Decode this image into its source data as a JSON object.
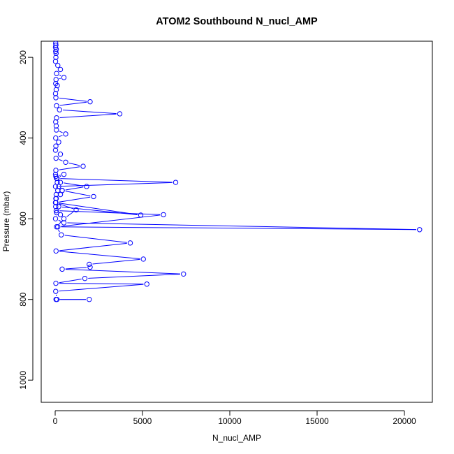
{
  "chart_data": {
    "type": "line",
    "title": "ATOM2 Southbound N_nucl_AMP",
    "xlabel": "N_nucl_AMP",
    "ylabel": "Pressure (mbar)",
    "xlim": [
      -800,
      21600
    ],
    "ylim": [
      1055,
      160
    ],
    "y_reversed": true,
    "xticks": [
      0,
      5000,
      10000,
      15000,
      20000
    ],
    "yticks": [
      200,
      400,
      600,
      800,
      1000
    ],
    "grid": false,
    "legend": "none",
    "marker": "open-circle",
    "color": "#0000ff",
    "series": [
      {
        "x": [
          30,
          40,
          20,
          60,
          30,
          50,
          40,
          20,
          150,
          300,
          80,
          500,
          50,
          30,
          120,
          60,
          20,
          40,
          2000,
          80,
          250,
          3700,
          80,
          30,
          60,
          70,
          600,
          30,
          200,
          40,
          20,
          300,
          50,
          600,
          1600,
          40,
          20,
          100,
          6900,
          20,
          150,
          60,
          40,
          20,
          30,
          80,
          300,
          20,
          500,
          20870,
          150,
          6200,
          60,
          200,
          4900,
          20,
          60,
          300,
          400,
          200,
          120,
          80,
          40,
          500,
          100,
          300,
          1800,
          400,
          2200,
          40,
          1200,
          500,
          80,
          350,
          4300,
          50,
          5050,
          1950,
          2000,
          400,
          7350,
          1700,
          40,
          5250,
          30,
          100,
          1950,
          50
        ],
        "y": [
          165,
          170,
          175,
          180,
          185,
          190,
          200,
          210,
          220,
          230,
          240,
          250,
          255,
          265,
          270,
          280,
          290,
          300,
          310,
          320,
          330,
          340,
          350,
          360,
          370,
          380,
          390,
          400,
          410,
          420,
          430,
          440,
          450,
          460,
          470,
          480,
          490,
          500,
          510,
          520,
          530,
          540,
          550,
          560,
          570,
          585,
          590,
          600,
          610,
          627,
          620,
          590,
          580,
          570,
          591,
          560,
          550,
          540,
          530,
          520,
          510,
          500,
          495,
          490,
          500,
          510,
          520,
          530,
          545,
          560,
          578,
          600,
          620,
          640,
          660,
          680,
          700,
          713,
          720,
          725,
          737,
          748,
          760,
          762,
          780,
          800,
          800,
          800
        ]
      }
    ]
  }
}
